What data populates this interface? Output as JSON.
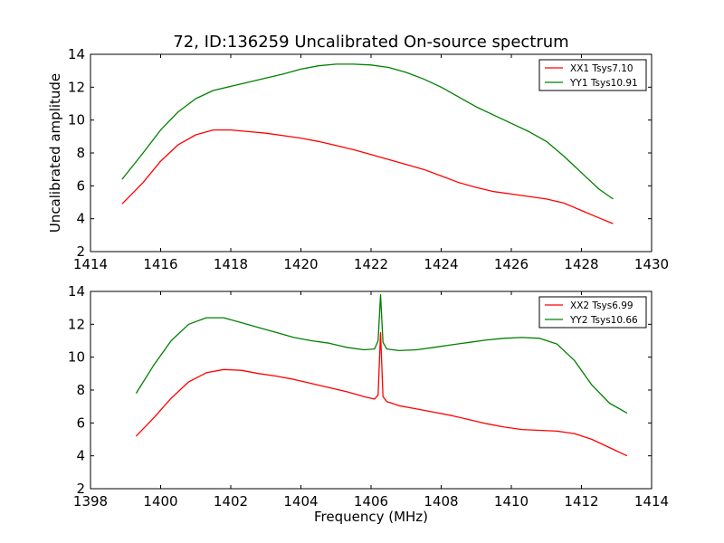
{
  "chart_data": {
    "type": "line",
    "title": "72, ID:136259 Uncalibrated On-source spectrum",
    "ylabel": "Uncalibrated amplitude",
    "xlabel": "Frequency (MHz)",
    "panels": [
      {
        "xlim": [
          1414,
          1430
        ],
        "ylim": [
          2,
          14
        ],
        "xticks": [
          "1414",
          "1416",
          "1418",
          "1420",
          "1422",
          "1424",
          "1426",
          "1428",
          "1430"
        ],
        "yticks": [
          "2",
          "4",
          "6",
          "8",
          "10",
          "12",
          "14"
        ],
        "legend_position": "top-right",
        "series": [
          {
            "name": "XX1 Tsys7.10",
            "color": "#ff0000",
            "x": [
              1414.9,
              1415.5,
              1416.0,
              1416.5,
              1417.0,
              1417.5,
              1418.0,
              1418.5,
              1419.0,
              1419.5,
              1420.0,
              1420.5,
              1421.0,
              1421.5,
              1422.0,
              1422.5,
              1423.0,
              1423.5,
              1424.0,
              1424.5,
              1425.0,
              1425.5,
              1426.0,
              1426.5,
              1427.0,
              1427.5,
              1428.0,
              1428.5,
              1428.9
            ],
            "y": [
              4.9,
              6.2,
              7.5,
              8.5,
              9.1,
              9.4,
              9.4,
              9.3,
              9.2,
              9.05,
              8.9,
              8.7,
              8.45,
              8.2,
              7.9,
              7.6,
              7.3,
              7.0,
              6.6,
              6.2,
              5.9,
              5.65,
              5.5,
              5.35,
              5.2,
              4.95,
              4.5,
              4.05,
              3.7
            ]
          },
          {
            "name": "YY1 Tsys10.91",
            "color": "#008000",
            "x": [
              1414.9,
              1415.5,
              1416.0,
              1416.5,
              1417.0,
              1417.5,
              1418.0,
              1418.5,
              1419.0,
              1419.5,
              1420.0,
              1420.5,
              1421.0,
              1421.5,
              1422.0,
              1422.5,
              1423.0,
              1423.5,
              1424.0,
              1424.5,
              1425.0,
              1425.5,
              1426.0,
              1426.5,
              1427.0,
              1427.5,
              1428.0,
              1428.5,
              1428.9
            ],
            "y": [
              6.4,
              8.0,
              9.4,
              10.5,
              11.3,
              11.8,
              12.05,
              12.3,
              12.55,
              12.8,
              13.1,
              13.3,
              13.4,
              13.4,
              13.35,
              13.2,
              12.9,
              12.5,
              12.0,
              11.4,
              10.8,
              10.3,
              9.8,
              9.3,
              8.7,
              7.8,
              6.8,
              5.8,
              5.2
            ]
          }
        ]
      },
      {
        "xlim": [
          1398,
          1414
        ],
        "ylim": [
          2,
          14
        ],
        "xticks": [
          "1398",
          "1400",
          "1402",
          "1404",
          "1406",
          "1408",
          "1410",
          "1412",
          "1414"
        ],
        "yticks": [
          "2",
          "4",
          "6",
          "8",
          "10",
          "12",
          "14"
        ],
        "legend_position": "top-right",
        "series": [
          {
            "name": "XX2 Tsys6.99",
            "color": "#ff0000",
            "x": [
              1399.3,
              1399.8,
              1400.3,
              1400.8,
              1401.3,
              1401.8,
              1402.3,
              1402.8,
              1403.3,
              1403.8,
              1404.3,
              1404.8,
              1405.3,
              1405.8,
              1406.1,
              1406.2,
              1406.27,
              1406.34,
              1406.45,
              1406.8,
              1407.3,
              1407.8,
              1408.3,
              1408.8,
              1409.3,
              1409.8,
              1410.3,
              1410.8,
              1411.3,
              1411.8,
              1412.3,
              1412.8,
              1413.3
            ],
            "y": [
              5.2,
              6.3,
              7.5,
              8.5,
              9.05,
              9.25,
              9.2,
              9.0,
              8.85,
              8.65,
              8.4,
              8.15,
              7.9,
              7.6,
              7.45,
              7.7,
              11.5,
              7.6,
              7.3,
              7.05,
              6.85,
              6.65,
              6.45,
              6.2,
              5.95,
              5.75,
              5.6,
              5.55,
              5.5,
              5.35,
              5.0,
              4.5,
              4.0
            ]
          },
          {
            "name": "YY2 Tsys10.66",
            "color": "#008000",
            "x": [
              1399.3,
              1399.8,
              1400.3,
              1400.8,
              1401.3,
              1401.8,
              1402.3,
              1402.8,
              1403.3,
              1403.8,
              1404.3,
              1404.8,
              1405.3,
              1405.8,
              1406.1,
              1406.2,
              1406.27,
              1406.34,
              1406.45,
              1406.8,
              1407.3,
              1407.8,
              1408.3,
              1408.8,
              1409.3,
              1409.8,
              1410.3,
              1410.8,
              1411.3,
              1411.8,
              1412.3,
              1412.8,
              1413.3
            ],
            "y": [
              7.8,
              9.5,
              11.0,
              12.0,
              12.4,
              12.4,
              12.1,
              11.8,
              11.5,
              11.2,
              11.0,
              10.85,
              10.6,
              10.45,
              10.5,
              11.0,
              13.8,
              10.9,
              10.5,
              10.4,
              10.45,
              10.6,
              10.75,
              10.9,
              11.05,
              11.15,
              11.2,
              11.15,
              10.8,
              9.8,
              8.3,
              7.2,
              6.6
            ]
          }
        ]
      }
    ]
  }
}
